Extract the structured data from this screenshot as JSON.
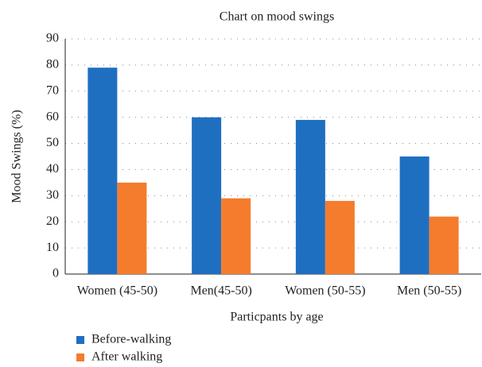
{
  "chart_data": {
    "type": "bar",
    "title": "Chart on mood swings",
    "x_label": "Particpants by age",
    "y_label": "Mood Swings (%)",
    "categories": [
      "Women (45-50)",
      "Men(45-50)",
      "Women (50-55)",
      "Men (50-55)"
    ],
    "series": [
      {
        "name": "Before-walking",
        "color": "#1f6fc0",
        "values": [
          79,
          60,
          59,
          45
        ]
      },
      {
        "name": "After walking",
        "color": "#f47c2c",
        "values": [
          35,
          29,
          28,
          22
        ]
      }
    ],
    "ylim": [
      0,
      90
    ],
    "yticks": [
      0,
      10,
      20,
      30,
      40,
      50,
      60,
      70,
      80,
      90
    ],
    "grid": true,
    "legend": "bottom-left"
  }
}
